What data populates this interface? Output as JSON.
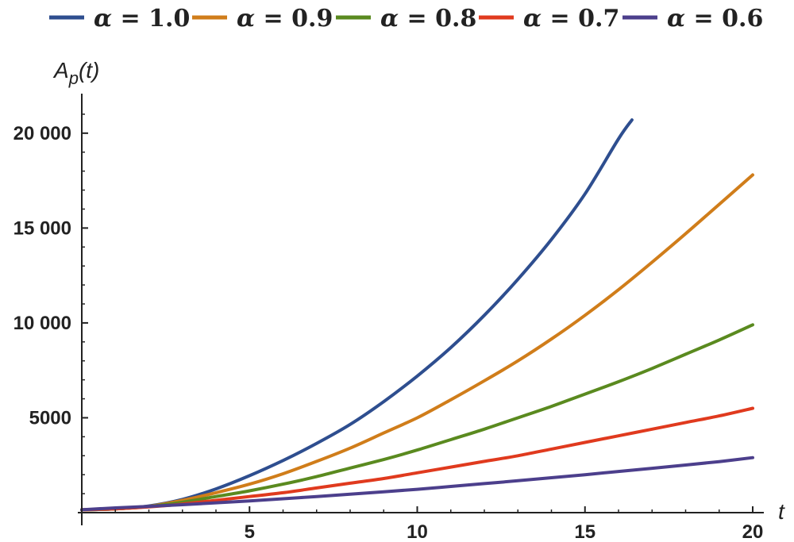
{
  "chart_data": {
    "type": "line",
    "xlabel": "t",
    "ylabel": "A",
    "ylabel_sub": "p",
    "ylabel_arg": "(t)",
    "xlim": [
      0,
      20
    ],
    "ylim": [
      0,
      22000
    ],
    "x_ticks": [
      5,
      10,
      15,
      20
    ],
    "x_tick_labels": [
      "5",
      "10",
      "15",
      "20"
    ],
    "y_ticks": [
      5000,
      10000,
      15000,
      20000
    ],
    "y_tick_labels": [
      "5000",
      "10 000",
      "15 000",
      "20 000"
    ],
    "legend_position": "top",
    "series": [
      {
        "name": "α = 1.0",
        "legend_symbol": "α",
        "legend_value": "= 1.0",
        "color": "#2e4e8f",
        "x": [
          0,
          1,
          2,
          3,
          4,
          5,
          6,
          7,
          8,
          9,
          10,
          11,
          12,
          13,
          14,
          15,
          16,
          16.4
        ],
        "y": [
          150,
          200,
          350,
          700,
          1250,
          1950,
          2750,
          3650,
          4650,
          5850,
          7200,
          8700,
          10400,
          12300,
          14400,
          16800,
          19700,
          20700
        ]
      },
      {
        "name": "α = 0.9",
        "legend_symbol": "α",
        "legend_value": "= 0.9",
        "color": "#d07d1a",
        "x": [
          0,
          1,
          2,
          3,
          4,
          5,
          6,
          7,
          8,
          9,
          10,
          11,
          12,
          13,
          14,
          15,
          16,
          17,
          18,
          19,
          20
        ],
        "y": [
          150,
          200,
          330,
          650,
          1050,
          1500,
          2050,
          2700,
          3400,
          4200,
          5000,
          5950,
          6950,
          8000,
          9150,
          10400,
          11750,
          13200,
          14700,
          16250,
          17800
        ]
      },
      {
        "name": "α = 0.8",
        "legend_symbol": "α",
        "legend_value": "= 0.8",
        "color": "#5a8a1f",
        "x": [
          0,
          1,
          2,
          3,
          4,
          5,
          6,
          7,
          8,
          9,
          10,
          11,
          12,
          13,
          14,
          15,
          16,
          17,
          18,
          19,
          20
        ],
        "y": [
          150,
          200,
          320,
          550,
          850,
          1150,
          1500,
          1900,
          2350,
          2800,
          3300,
          3850,
          4400,
          5000,
          5600,
          6250,
          6900,
          7600,
          8350,
          9100,
          9900
        ]
      },
      {
        "name": "α = 0.7",
        "legend_symbol": "α",
        "legend_value": "= 0.7",
        "color": "#e03a1e",
        "x": [
          0,
          1,
          2,
          3,
          4,
          5,
          6,
          7,
          8,
          9,
          10,
          11,
          12,
          13,
          14,
          15,
          16,
          17,
          18,
          19,
          20
        ],
        "y": [
          150,
          200,
          300,
          450,
          650,
          850,
          1050,
          1300,
          1550,
          1800,
          2100,
          2400,
          2700,
          3000,
          3350,
          3700,
          4050,
          4400,
          4750,
          5100,
          5500
        ]
      },
      {
        "name": "α = 0.6",
        "legend_symbol": "α",
        "legend_value": "= 0.6",
        "color": "#4c3f8c",
        "x": [
          0,
          1,
          2,
          3,
          4,
          5,
          6,
          7,
          8,
          9,
          10,
          11,
          12,
          13,
          14,
          15,
          16,
          17,
          18,
          19,
          20
        ],
        "y": [
          150,
          250,
          330,
          420,
          520,
          620,
          730,
          850,
          970,
          1100,
          1230,
          1380,
          1530,
          1680,
          1840,
          2000,
          2170,
          2340,
          2510,
          2690,
          2900
        ]
      }
    ]
  }
}
